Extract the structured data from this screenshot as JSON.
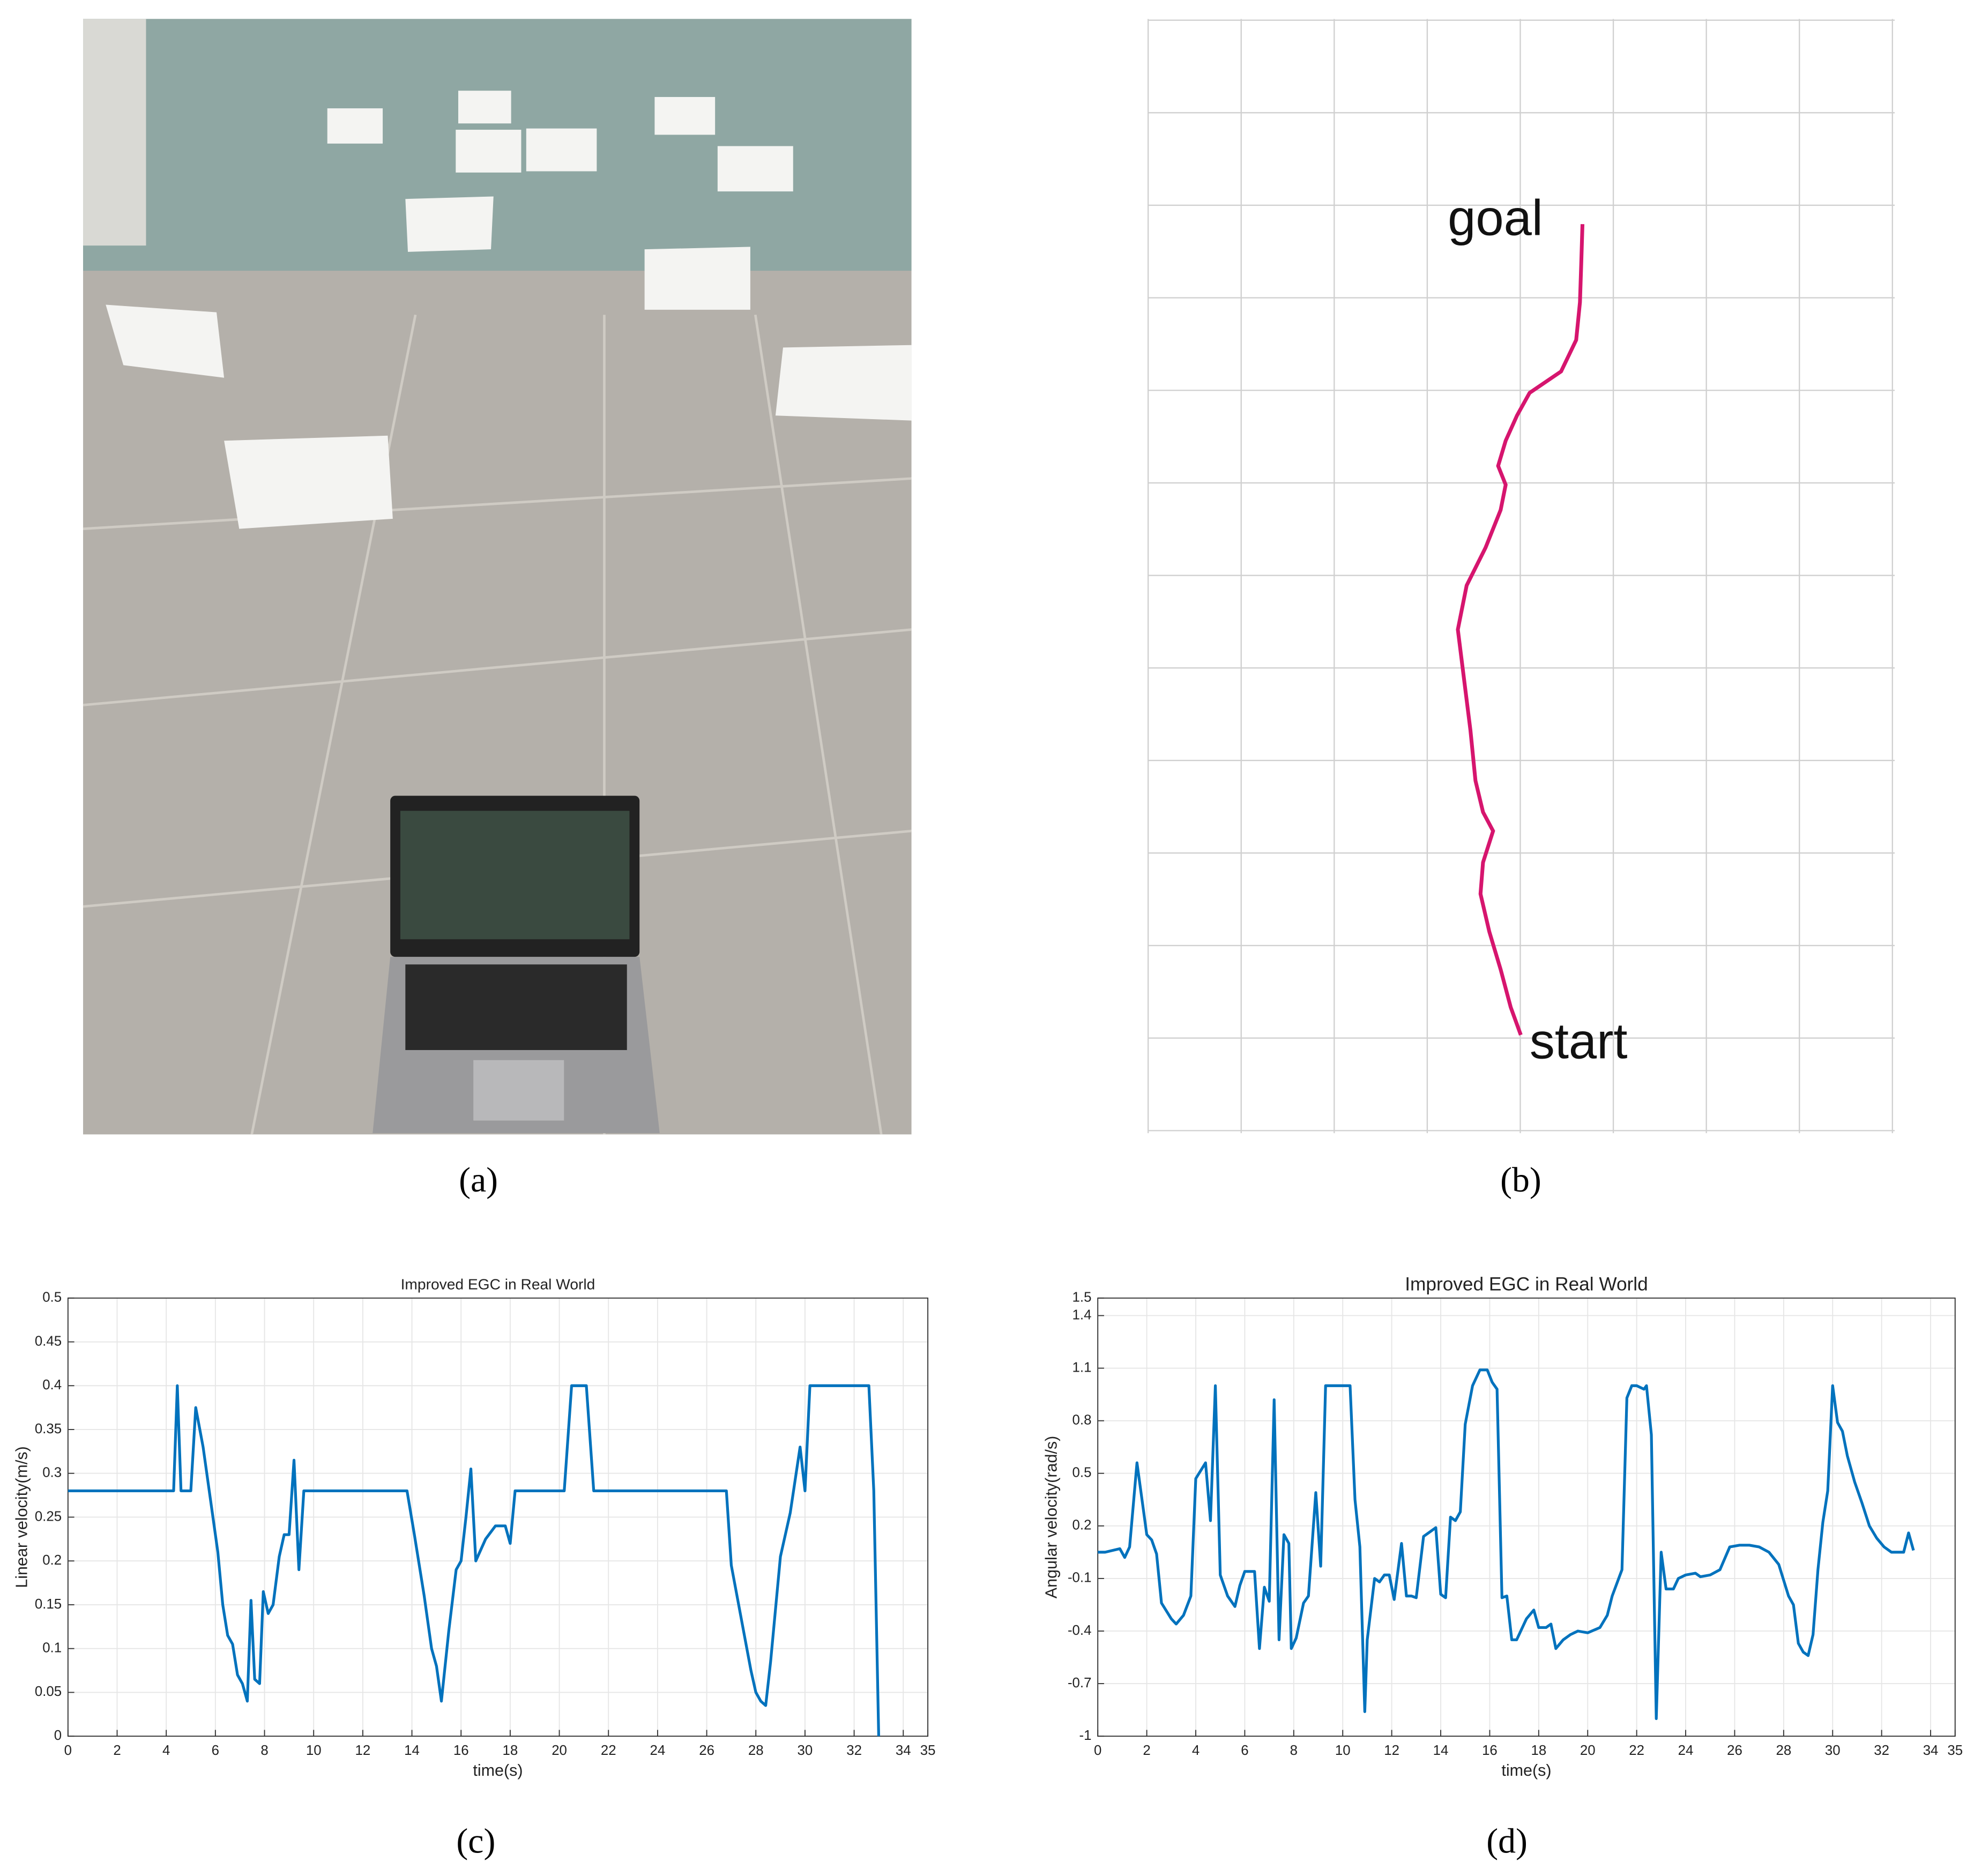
{
  "captions": [
    "(a)",
    "(b)",
    "(c)",
    "(d)"
  ],
  "panel_b": {
    "goal": "goal",
    "start": "start"
  },
  "chart_data": [
    {
      "type": "line",
      "title": "Improved EGC in Real World",
      "xlabel": "time(s)",
      "ylabel": "Linear velocity(m/s)",
      "color": "#0072bd",
      "grid": true,
      "xlim": [
        0,
        35
      ],
      "ylim": [
        0,
        0.5
      ],
      "xticks": [
        0,
        2,
        4,
        6,
        8,
        10,
        12,
        14,
        16,
        18,
        20,
        22,
        24,
        26,
        28,
        30,
        32,
        34,
        35
      ],
      "yticks": [
        0,
        0.05,
        0.1,
        0.15,
        0.2,
        0.25,
        0.3,
        0.35,
        0.4,
        0.45,
        0.5
      ],
      "x": [
        0,
        4.3,
        4.45,
        4.6,
        5.0,
        5.2,
        5.5,
        5.8,
        6.1,
        6.3,
        6.5,
        6.7,
        6.9,
        7.1,
        7.3,
        7.45,
        7.6,
        7.8,
        7.95,
        8.15,
        8.35,
        8.6,
        8.8,
        9.0,
        9.2,
        9.4,
        9.6,
        13.8,
        14.1,
        14.5,
        14.8,
        15.0,
        15.2,
        15.5,
        15.8,
        16.0,
        16.2,
        16.4,
        16.6,
        17.0,
        17.4,
        17.8,
        18.0,
        18.2,
        20.2,
        20.5,
        21.1,
        21.4,
        26.8,
        27.0,
        27.3,
        27.6,
        27.8,
        28.0,
        28.2,
        28.4,
        28.6,
        29.0,
        29.4,
        29.8,
        30.0,
        30.2,
        32.6,
        32.8,
        33.0
      ],
      "values": [
        0.28,
        0.28,
        0.4,
        0.28,
        0.28,
        0.375,
        0.33,
        0.27,
        0.21,
        0.15,
        0.115,
        0.105,
        0.07,
        0.06,
        0.04,
        0.155,
        0.065,
        0.06,
        0.165,
        0.14,
        0.15,
        0.205,
        0.23,
        0.23,
        0.315,
        0.19,
        0.28,
        0.28,
        0.23,
        0.16,
        0.1,
        0.08,
        0.04,
        0.12,
        0.19,
        0.2,
        0.25,
        0.305,
        0.2,
        0.225,
        0.24,
        0.24,
        0.22,
        0.28,
        0.28,
        0.4,
        0.4,
        0.28,
        0.28,
        0.195,
        0.15,
        0.105,
        0.075,
        0.05,
        0.04,
        0.035,
        0.085,
        0.205,
        0.255,
        0.33,
        0.28,
        0.4,
        0.4,
        0.28,
        0
      ]
    },
    {
      "type": "line",
      "title": "Improved EGC in Real World",
      "xlabel": "time(s)",
      "ylabel": "Angular velocity(rad/s)",
      "color": "#0072bd",
      "grid": true,
      "xlim": [
        0,
        35
      ],
      "ylim": [
        -1,
        1.5
      ],
      "xticks": [
        0,
        2,
        4,
        6,
        8,
        10,
        12,
        14,
        16,
        18,
        20,
        22,
        24,
        26,
        28,
        30,
        32,
        34,
        35
      ],
      "yticks": [
        -1,
        -0.7,
        -0.4,
        -0.1,
        0.2,
        0.5,
        0.8,
        1.1,
        1.4,
        1.5
      ],
      "x": [
        0,
        0.3,
        0.6,
        0.9,
        1.1,
        1.3,
        1.6,
        2.0,
        2.2,
        2.4,
        2.6,
        3.0,
        3.2,
        3.5,
        3.8,
        4.0,
        4.4,
        4.6,
        4.8,
        5.0,
        5.3,
        5.6,
        5.8,
        6.0,
        6.4,
        6.6,
        6.8,
        7.0,
        7.2,
        7.4,
        7.6,
        7.8,
        7.9,
        8.1,
        8.4,
        8.6,
        8.9,
        9.1,
        9.3,
        10.0,
        10.3,
        10.5,
        10.7,
        10.9,
        11.0,
        11.3,
        11.5,
        11.7,
        11.9,
        12.1,
        12.4,
        12.6,
        12.8,
        13.0,
        13.3,
        13.6,
        13.8,
        14.0,
        14.2,
        14.4,
        14.6,
        14.8,
        15.0,
        15.3,
        15.6,
        15.9,
        16.1,
        16.3,
        16.5,
        16.7,
        16.9,
        17.1,
        17.5,
        17.8,
        18.0,
        18.3,
        18.5,
        18.7,
        19.0,
        19.3,
        19.6,
        20.0,
        20.5,
        20.8,
        21.0,
        21.4,
        21.6,
        21.8,
        22.0,
        22.3,
        22.4,
        22.6,
        22.8,
        23.0,
        23.2,
        23.5,
        23.7,
        24.0,
        24.4,
        24.6,
        25.0,
        25.4,
        25.8,
        26.2,
        26.6,
        27.0,
        27.4,
        27.8,
        28.2,
        28.4,
        28.6,
        28.8,
        29.0,
        29.2,
        29.4,
        29.6,
        29.8,
        30.0,
        30.2,
        30.4,
        30.6,
        30.9,
        31.2,
        31.5,
        31.8,
        32.1,
        32.4,
        32.7,
        32.9,
        33.1,
        33.3
      ],
      "values": [
        0.05,
        0.05,
        0.06,
        0.07,
        0.02,
        0.08,
        0.56,
        0.15,
        0.12,
        0.04,
        -0.24,
        -0.33,
        -0.36,
        -0.31,
        -0.2,
        0.47,
        0.56,
        0.23,
        1.0,
        -0.08,
        -0.2,
        -0.26,
        -0.14,
        -0.06,
        -0.06,
        -0.5,
        -0.15,
        -0.23,
        0.92,
        -0.45,
        0.15,
        0.1,
        -0.5,
        -0.44,
        -0.24,
        -0.2,
        0.39,
        -0.03,
        1.0,
        1.0,
        1.0,
        0.35,
        0.08,
        -0.86,
        -0.45,
        -0.1,
        -0.12,
        -0.08,
        -0.08,
        -0.22,
        0.1,
        -0.2,
        -0.2,
        -0.21,
        0.14,
        0.17,
        0.19,
        -0.19,
        -0.21,
        0.25,
        0.23,
        0.28,
        0.78,
        1.0,
        1.09,
        1.09,
        1.02,
        0.98,
        -0.21,
        -0.2,
        -0.45,
        -0.45,
        -0.33,
        -0.28,
        -0.38,
        -0.38,
        -0.36,
        -0.5,
        -0.45,
        -0.42,
        -0.4,
        -0.41,
        -0.38,
        -0.31,
        -0.2,
        -0.05,
        0.93,
        1.0,
        1.0,
        0.98,
        1.0,
        0.72,
        -0.9,
        0.05,
        -0.16,
        -0.16,
        -0.1,
        -0.08,
        -0.07,
        -0.09,
        -0.08,
        -0.05,
        0.08,
        0.09,
        0.09,
        0.08,
        0.05,
        -0.02,
        -0.2,
        -0.25,
        -0.47,
        -0.52,
        -0.54,
        -0.42,
        -0.05,
        0.22,
        0.4,
        1.0,
        0.79,
        0.74,
        0.6,
        0.45,
        0.33,
        0.2,
        0.13,
        0.08,
        0.05,
        0.05,
        0.05,
        0.16,
        0.06
      ]
    }
  ]
}
